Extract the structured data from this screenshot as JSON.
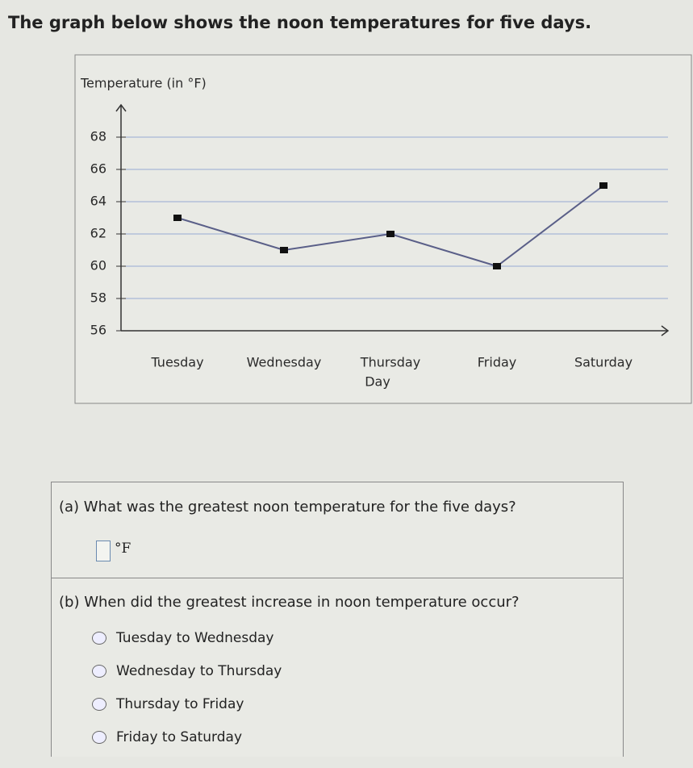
{
  "header": {
    "title": "The graph below shows the noon temperatures for five days."
  },
  "chart_data": {
    "type": "line",
    "y_label": "Temperature (in °F)",
    "x_label": "Day",
    "categories": [
      "Tuesday",
      "Wednesday",
      "Thursday",
      "Friday",
      "Saturday"
    ],
    "values": [
      63,
      61,
      62,
      60,
      65
    ],
    "color": "#5a5f88",
    "marker_color": "#111111",
    "ylim": [
      56,
      70
    ],
    "yticks": [
      56,
      58,
      60,
      62,
      64,
      66,
      68
    ],
    "grid": true,
    "grid_color": "#a9b6d6"
  },
  "questions": {
    "a": {
      "text": "(a) What was the greatest noon temperature for the five days?",
      "unit": "°F"
    },
    "b": {
      "text": "(b) When did the greatest increase in noon temperature occur?",
      "options": [
        "Tuesday to Wednesday",
        "Wednesday to Thursday",
        "Thursday to Friday",
        "Friday to Saturday"
      ]
    }
  }
}
